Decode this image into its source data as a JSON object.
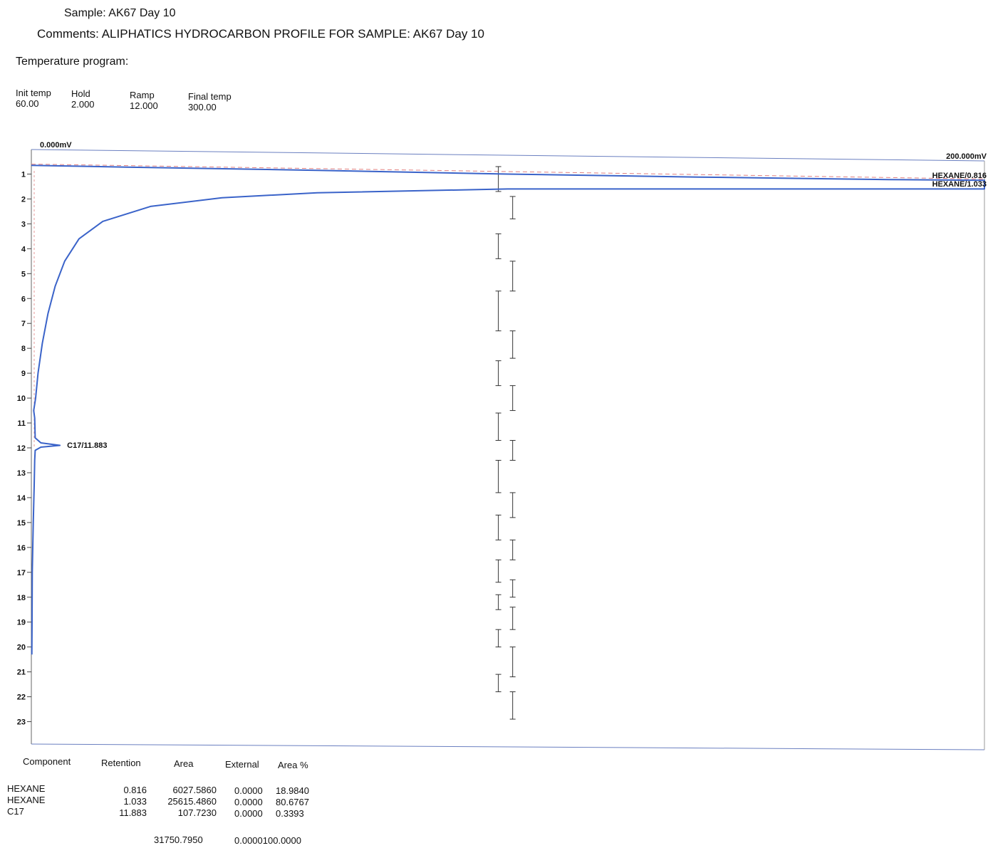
{
  "header": {
    "sample_label": "Sample:",
    "sample_value": "AK67 Day 10",
    "comments_label": "Comments:",
    "comments_value": "ALIPHATICS HYDROCARBON PROFILE FOR SAMPLE: AK67 Day 10"
  },
  "temperature_program": {
    "title": "Temperature program:",
    "columns": [
      {
        "label": "Init temp",
        "value": "60.00"
      },
      {
        "label": "Hold",
        "value": "2.000"
      },
      {
        "label": "Ramp",
        "value": "12.000"
      },
      {
        "label": "Final temp",
        "value": "300.00"
      }
    ]
  },
  "chart_data": {
    "type": "line",
    "orientation": "vertical-time",
    "x_min_label": "0.000mV",
    "x_max_label": "200.000mV",
    "xlim": [
      0,
      200
    ],
    "ylim": [
      0.3,
      23.9
    ],
    "y_ticks": [
      1,
      2,
      3,
      4,
      5,
      6,
      7,
      8,
      9,
      10,
      11,
      12,
      13,
      14,
      15,
      16,
      17,
      18,
      19,
      20,
      21,
      22,
      23
    ],
    "series": [
      {
        "points": [
          [
            0,
            0.65
          ],
          [
            20,
            0.72
          ],
          [
            60,
            0.85
          ],
          [
            100,
            1.0
          ],
          [
            140,
            1.12
          ],
          [
            180,
            1.22
          ],
          [
            200,
            1.25
          ],
          [
            200,
            1.6
          ],
          [
            150,
            1.6
          ],
          [
            100,
            1.6
          ],
          [
            60,
            1.75
          ],
          [
            40,
            1.95
          ],
          [
            25,
            2.3
          ],
          [
            15,
            2.9
          ],
          [
            10,
            3.6
          ],
          [
            7,
            4.5
          ],
          [
            5,
            5.5
          ],
          [
            3.5,
            6.6
          ],
          [
            2.3,
            7.8
          ],
          [
            1.4,
            9.0
          ],
          [
            0.9,
            10.0
          ],
          [
            0.5,
            10.5
          ],
          [
            0.7,
            10.8
          ],
          [
            0.8,
            11.6
          ],
          [
            2,
            11.8
          ],
          [
            6,
            11.9
          ],
          [
            2,
            11.97
          ],
          [
            0.8,
            12.1
          ],
          [
            0.7,
            12.5
          ],
          [
            0.6,
            13.5
          ],
          [
            0.4,
            15
          ],
          [
            0.2,
            17
          ],
          [
            0.15,
            19
          ],
          [
            0.1,
            20.3
          ]
        ]
      }
    ],
    "peaks": [
      {
        "label": "HEXANE/0.816",
        "retention": 0.816
      },
      {
        "label": "HEXANE/1.033",
        "retention": 1.033
      },
      {
        "label": "C17/11.883",
        "retention": 11.883
      }
    ],
    "integration_marks": [
      {
        "x": 98,
        "y0": 0.7,
        "y1": 1.7
      },
      {
        "x": 101,
        "y0": 1.9,
        "y1": 2.8
      },
      {
        "x": 98,
        "y0": 3.4,
        "y1": 4.4
      },
      {
        "x": 101,
        "y0": 4.5,
        "y1": 5.7
      },
      {
        "x": 98,
        "y0": 5.7,
        "y1": 7.3
      },
      {
        "x": 101,
        "y0": 7.3,
        "y1": 8.4
      },
      {
        "x": 98,
        "y0": 8.5,
        "y1": 9.5
      },
      {
        "x": 101,
        "y0": 9.5,
        "y1": 10.5
      },
      {
        "x": 98,
        "y0": 10.6,
        "y1": 11.7
      },
      {
        "x": 101,
        "y0": 11.7,
        "y1": 12.5
      },
      {
        "x": 98,
        "y0": 12.5,
        "y1": 13.8
      },
      {
        "x": 101,
        "y0": 13.8,
        "y1": 14.8
      },
      {
        "x": 98,
        "y0": 14.7,
        "y1": 15.7
      },
      {
        "x": 101,
        "y0": 15.7,
        "y1": 16.5
      },
      {
        "x": 98,
        "y0": 16.5,
        "y1": 17.4
      },
      {
        "x": 101,
        "y0": 17.3,
        "y1": 18.0
      },
      {
        "x": 98,
        "y0": 17.9,
        "y1": 18.5
      },
      {
        "x": 101,
        "y0": 18.4,
        "y1": 19.3
      },
      {
        "x": 98,
        "y0": 19.3,
        "y1": 20.0
      },
      {
        "x": 101,
        "y0": 20.0,
        "y1": 21.2
      },
      {
        "x": 98,
        "y0": 21.1,
        "y1": 21.8
      },
      {
        "x": 101,
        "y0": 21.8,
        "y1": 22.9
      }
    ],
    "colors": {
      "trace": "#3a63c9",
      "axis": "#555555",
      "baseline": "#e08080"
    }
  },
  "results_table": {
    "headers": [
      "Component",
      "Retention",
      "Area",
      "External",
      "Area %"
    ],
    "rows": [
      [
        "HEXANE",
        "0.816",
        "6027.5860",
        "0.0000",
        "18.9840"
      ],
      [
        "HEXANE",
        "1.033",
        "25615.4860",
        "0.0000",
        "80.6767"
      ],
      [
        "C17",
        "11.883",
        "107.7230",
        "0.0000",
        "0.3393"
      ]
    ],
    "total_area": "31750.7950",
    "total_external_pct": "0.0000100.0000"
  }
}
